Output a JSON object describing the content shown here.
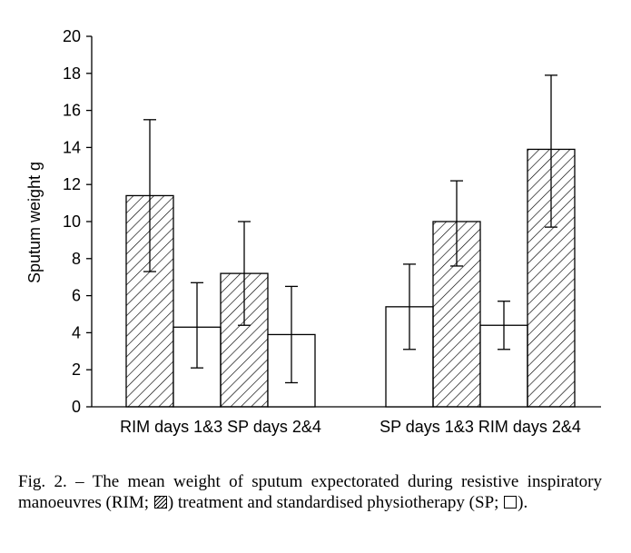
{
  "chart_data": {
    "type": "bar",
    "ylabel": "Sputum weight  g",
    "ylim": [
      0,
      20
    ],
    "yticks": [
      0,
      2,
      4,
      6,
      8,
      10,
      12,
      14,
      16,
      18,
      20
    ],
    "groups": [
      {
        "label": "RIM days 1&3 SP days 2&4",
        "bars": [
          {
            "treatment": "RIM",
            "value": 11.4,
            "err_low": 7.3,
            "err_high": 15.5
          },
          {
            "treatment": "SP",
            "value": 4.3,
            "err_low": 2.1,
            "err_high": 6.7
          },
          {
            "treatment": "RIM",
            "value": 7.2,
            "err_low": 4.4,
            "err_high": 10.0
          },
          {
            "treatment": "SP",
            "value": 3.9,
            "err_low": 1.3,
            "err_high": 6.5
          }
        ]
      },
      {
        "label": "SP days 1&3 RIM days 2&4",
        "bars": [
          {
            "treatment": "SP",
            "value": 5.4,
            "err_low": 3.1,
            "err_high": 7.7
          },
          {
            "treatment": "RIM",
            "value": 10.0,
            "err_low": 7.6,
            "err_high": 12.2
          },
          {
            "treatment": "SP",
            "value": 4.4,
            "err_low": 3.1,
            "err_high": 5.7
          },
          {
            "treatment": "RIM",
            "value": 13.9,
            "err_low": 9.7,
            "err_high": 17.9
          }
        ]
      }
    ],
    "legend": {
      "RIM": "hatched",
      "SP": "open"
    },
    "grid": false
  },
  "caption": {
    "prefix": "Fig. 2. – The mean weight of sputum expectorated during resistive inspiratory manoeuvres (RIM; ",
    "middle": ") treatment and standardised physiotherapy (SP; ",
    "suffix": ")."
  }
}
